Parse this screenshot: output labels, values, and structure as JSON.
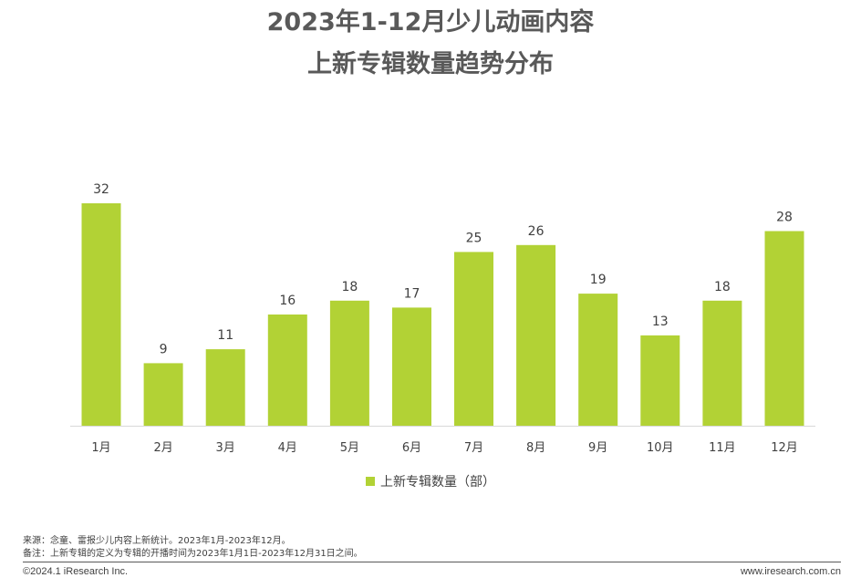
{
  "title_line1": "2023年1-12月少儿动画内容",
  "title_line2": "上新专辑数量趋势分布",
  "chart_data": {
    "type": "bar",
    "title": "2023年1-12月少儿动画内容上新专辑数量趋势分布",
    "categories": [
      "1月",
      "2月",
      "3月",
      "4月",
      "5月",
      "6月",
      "7月",
      "8月",
      "9月",
      "10月",
      "11月",
      "12月"
    ],
    "series": [
      {
        "name": "上新专辑数量（部）",
        "values": [
          32,
          9,
          11,
          16,
          18,
          17,
          25,
          26,
          19,
          13,
          18,
          28
        ]
      }
    ],
    "xlabel": "",
    "ylabel": "",
    "ylim": [
      0,
      35
    ],
    "grid": false,
    "legend_position": "bottom",
    "bar_color": "#b2d235"
  },
  "legend": {
    "label": "上新专辑数量（部）"
  },
  "notes": {
    "source": "来源：念童、雷报少儿内容上新统计。2023年1月-2023年12月。",
    "remark": "备注：上新专辑的定义为专辑的开播时间为2023年1月1日-2023年12月31日之间。"
  },
  "footer": {
    "copyright": "©2024.1 iResearch Inc.",
    "website": "www.iresearch.com.cn"
  }
}
